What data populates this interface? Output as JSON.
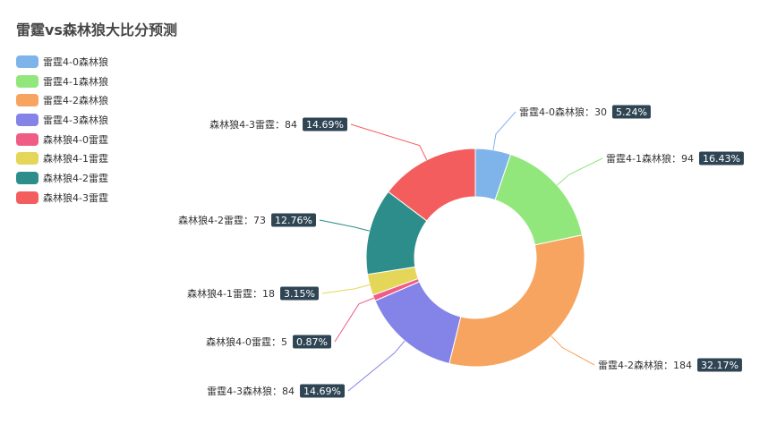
{
  "chart_data": {
    "type": "pie",
    "donut": true,
    "title": "雷霆vs森林狼大比分预测",
    "series": [
      {
        "name": "雷霆4-0森林狼",
        "value": 30,
        "percent": "5.24%",
        "color": "#7fb4ea"
      },
      {
        "name": "雷霆4-1森林狼",
        "value": 94,
        "percent": "16.43%",
        "color": "#91e77b"
      },
      {
        "name": "雷霆4-2森林狼",
        "value": 184,
        "percent": "32.17%",
        "color": "#f6a45f"
      },
      {
        "name": "雷霆4-3森林狼",
        "value": 84,
        "percent": "14.69%",
        "color": "#8483e8"
      },
      {
        "name": "森林狼4-0雷霆",
        "value": 5,
        "percent": "0.87%",
        "color": "#ef5d86"
      },
      {
        "name": "森林狼4-1雷霆",
        "value": 18,
        "percent": "3.15%",
        "color": "#e4d658"
      },
      {
        "name": "森林狼4-2雷霆",
        "value": 73,
        "percent": "12.76%",
        "color": "#2c8d8b"
      },
      {
        "name": "森林狼4-3雷霆",
        "value": 84,
        "percent": "14.69%",
        "color": "#f45d5d"
      }
    ],
    "legend_position": "top-left",
    "label_separator": "："
  }
}
